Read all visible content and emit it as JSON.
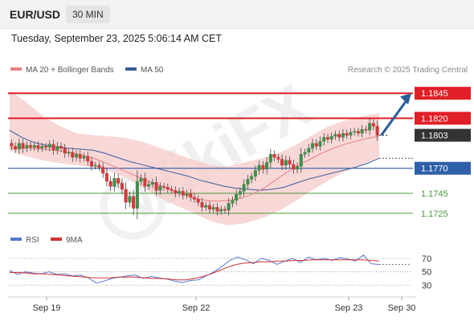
{
  "header": {
    "symbol": "EUR/USD",
    "timeframe": "30 MIN"
  },
  "timestamp": "Tuesday, September 23, 2025 5:06:14 AM CET",
  "legend": {
    "ma20_label": "MA 20 + Bollinger Bands",
    "ma50_label": "MA 50",
    "credit": "Research © 2025 Trading Central",
    "rsi_label": "RSI",
    "ma9_label": "9MA"
  },
  "colors": {
    "resistance": "#e01f26",
    "current": "#333333",
    "support_primary": "#2f5fa8",
    "support_secondary": "#4a9a3c",
    "ma20": "#e98080",
    "ma50": "#3a5b9a",
    "bollinger_fill": "#f6c9c9",
    "bull_candle": "#3e8e4a",
    "bear_candle": "#d23a3a",
    "rsi": "#5577cc",
    "rsi_ma": "#d03030",
    "arrow": "#2b5c99",
    "watermark": "#cccccc"
  },
  "watermark": {
    "text": "WikiFX"
  },
  "chart_data": {
    "type": "candlestick",
    "instrument": "EUR/USD",
    "timeframe": "30 MIN",
    "ylim": [
      1.1712,
      1.1858
    ],
    "x_ticks": [
      "Sep 19",
      "Sep 22",
      "Sep 23",
      "Sep 30"
    ],
    "levels": [
      {
        "value": 1.1845,
        "label": "1.1845",
        "style": "resistance"
      },
      {
        "value": 1.182,
        "label": "1.1820",
        "style": "resistance"
      },
      {
        "value": 1.1803,
        "label": "1.1803",
        "style": "current"
      },
      {
        "value": 1.177,
        "label": "1.1770",
        "style": "support_primary"
      },
      {
        "value": 1.1745,
        "label": "1.1745",
        "style": "support_secondary"
      },
      {
        "value": 1.1725,
        "label": "1.1725",
        "style": "support_secondary"
      }
    ],
    "close_series": [
      1.1792,
      1.1789,
      1.1795,
      1.179,
      1.1793,
      1.1791,
      1.1793,
      1.179,
      1.1792,
      1.1791,
      1.1794,
      1.1788,
      1.1792,
      1.179,
      1.1785,
      1.1786,
      1.1781,
      1.1784,
      1.178,
      1.1782,
      1.1777,
      1.1772,
      1.1773,
      1.1771,
      1.1765,
      1.1757,
      1.1752,
      1.176,
      1.1755,
      1.1749,
      1.1736,
      1.1742,
      1.173,
      1.1757,
      1.176,
      1.1752,
      1.1754,
      1.1756,
      1.1748,
      1.1752,
      1.1751,
      1.1749,
      1.1748,
      1.1745,
      1.1747,
      1.1743,
      1.1745,
      1.1741,
      1.1739,
      1.1736,
      1.1731,
      1.1733,
      1.1729,
      1.1731,
      1.1727,
      1.1729,
      1.1728,
      1.1735,
      1.1738,
      1.1744,
      1.1747,
      1.1754,
      1.1759,
      1.1762,
      1.1768,
      1.1773,
      1.1769,
      1.1776,
      1.1784,
      1.1781,
      1.1779,
      1.1773,
      1.1778,
      1.1774,
      1.1769,
      1.1772,
      1.1784,
      1.1786,
      1.179,
      1.1795,
      1.1792,
      1.1797,
      1.1801,
      1.1799,
      1.1802,
      1.1804,
      1.1801,
      1.1805,
      1.1803,
      1.1806,
      1.1807,
      1.1805,
      1.1809,
      1.1808,
      1.1815,
      1.1812,
      1.1803
    ],
    "ma20": [
      1.179,
      1.179,
      1.179,
      1.1789,
      1.1788,
      1.1786,
      1.1784,
      1.1781,
      1.1777,
      1.1772,
      1.1767,
      1.1762,
      1.1757,
      1.1753,
      1.1748,
      1.1744,
      1.174,
      1.1738,
      1.1737,
      1.1738,
      1.174,
      1.1744,
      1.175,
      1.1758,
      1.1766,
      1.1773,
      1.1779,
      1.1785,
      1.179,
      1.1794,
      1.1797,
      1.18,
      1.1802
    ],
    "ma50": [
      1.1808,
      1.1801,
      1.1796,
      1.1793,
      1.1791,
      1.179,
      1.1789,
      1.1788,
      1.1785,
      1.1781,
      1.1777,
      1.1774,
      1.1771,
      1.1768,
      1.1765,
      1.1762,
      1.1758,
      1.1755,
      1.1752,
      1.175,
      1.1749,
      1.1748,
      1.1749,
      1.1751,
      1.1755,
      1.1759,
      1.1762,
      1.1765,
      1.1768,
      1.1771,
      1.1775,
      1.178
    ],
    "bb_upper": [
      1.1848,
      1.1836,
      1.1822,
      1.1812,
      1.1805,
      1.1803,
      1.1802,
      1.18,
      1.1796,
      1.179,
      1.1784,
      1.1778,
      1.1773,
      1.1772,
      1.1776,
      1.178,
      1.1785,
      1.1793,
      1.1803,
      1.1812,
      1.1818,
      1.1822,
      1.1825
    ],
    "bb_lower": [
      1.1788,
      1.1782,
      1.1778,
      1.1775,
      1.1773,
      1.1771,
      1.1767,
      1.176,
      1.175,
      1.174,
      1.1732,
      1.1725,
      1.1717,
      1.1713,
      1.1715,
      1.172,
      1.1727,
      1.1737,
      1.1748,
      1.1758,
      1.1767,
      1.1774,
      1.1781
    ],
    "projection": {
      "from": 1.1803,
      "to": 1.1845
    },
    "rsi": {
      "ticks": [
        70,
        50,
        30
      ],
      "ylim": [
        22,
        82
      ],
      "rsi": [
        52,
        46,
        50,
        48,
        47,
        50,
        46,
        47,
        44,
        45,
        41,
        33,
        36,
        40,
        42,
        44,
        45,
        40,
        43,
        41,
        39,
        36,
        34,
        37,
        38,
        44,
        50,
        58,
        67,
        72,
        68,
        62,
        70,
        67,
        61,
        66,
        70,
        64,
        72,
        68,
        70,
        67,
        71,
        69,
        66,
        75,
        62,
        61
      ],
      "ma9": [
        49,
        49,
        48,
        47,
        47,
        46,
        45,
        44,
        43,
        42,
        41,
        41,
        41,
        42,
        42,
        42,
        41,
        40,
        40,
        39,
        38,
        38,
        40,
        43,
        47,
        52,
        57,
        61,
        63,
        64,
        65,
        65,
        66,
        66,
        67,
        67,
        68,
        68,
        68,
        68,
        68,
        68,
        68,
        67,
        66
      ]
    }
  }
}
